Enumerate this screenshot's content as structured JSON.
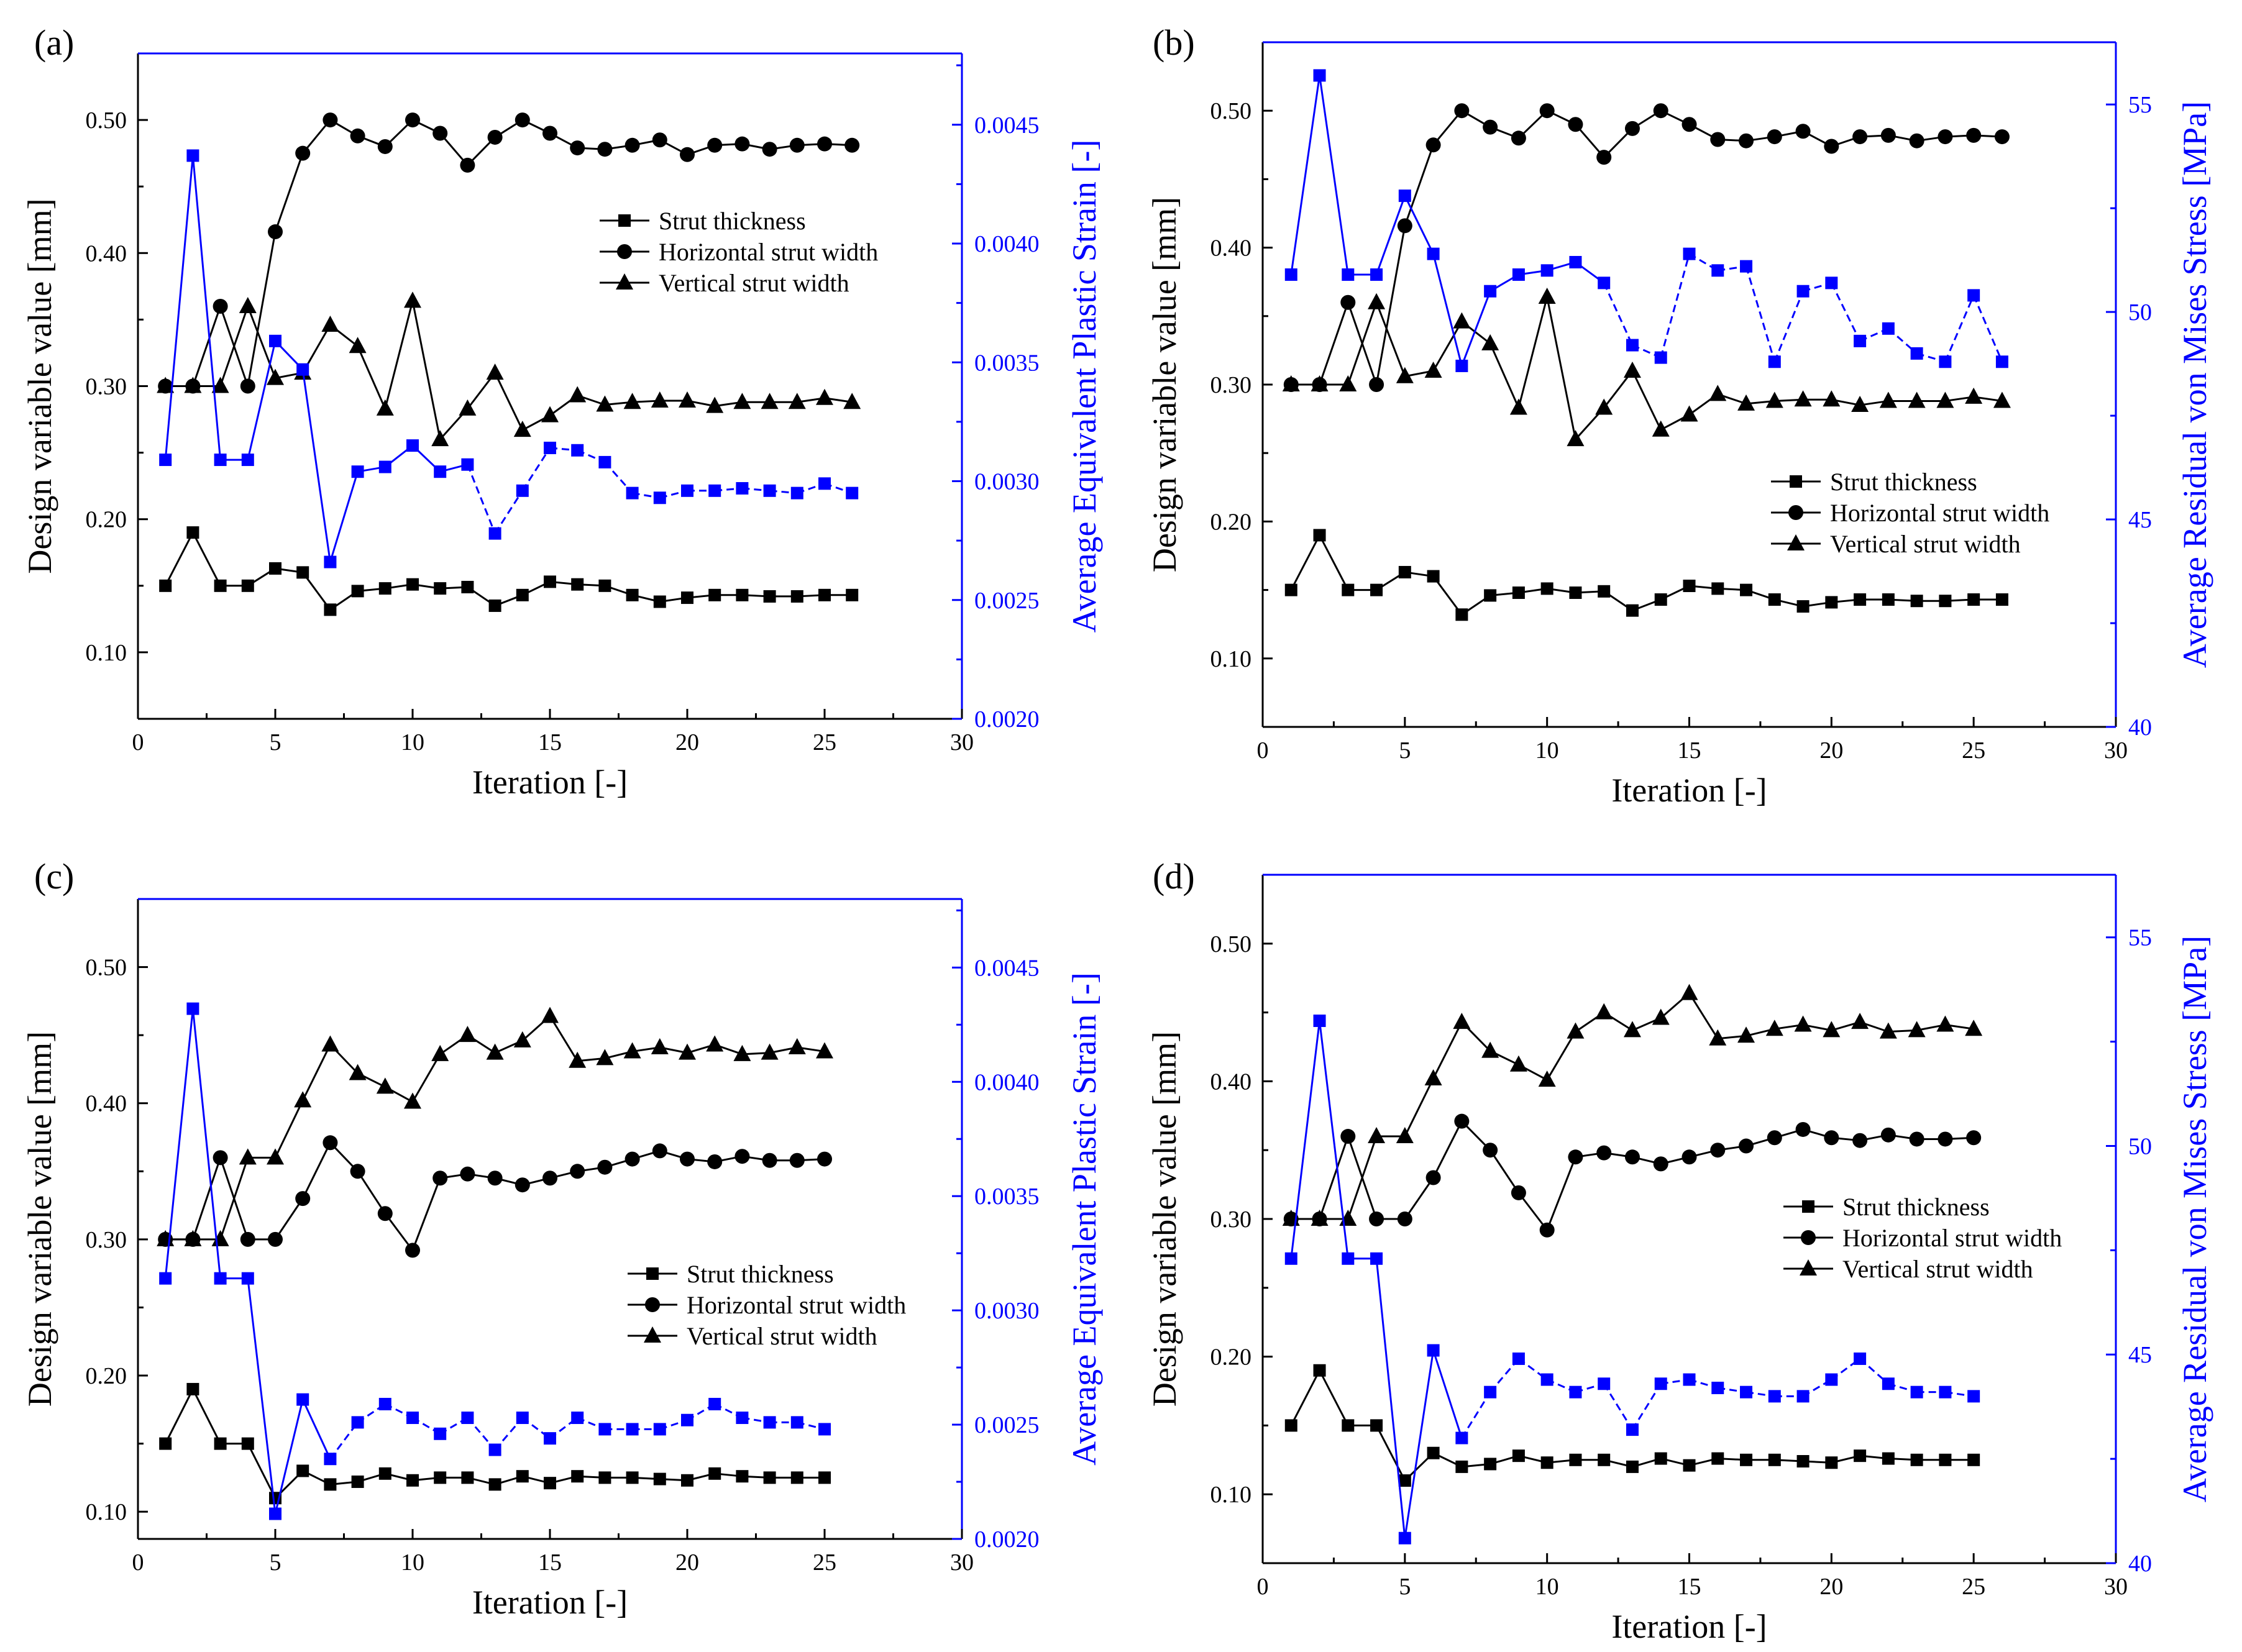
{
  "chart_data": [
    {
      "panel_label": "(a)",
      "type": "line",
      "xlabel": "Iteration [-]",
      "ylabel": "Design variable value [mm]",
      "y2label": "Average Equivalent Plastic Strain [-]",
      "xlim": [
        0,
        30
      ],
      "ylim": [
        0.05,
        0.55
      ],
      "y2lim": [
        0.002,
        0.0048
      ],
      "x_ticks": [
        "0",
        "5",
        "10",
        "15",
        "20",
        "25",
        "30"
      ],
      "y_ticks": [
        "0.10",
        "0.20",
        "0.30",
        "0.40",
        "0.50"
      ],
      "y2_ticks": [
        "0.0020",
        "0.0025",
        "0.0030",
        "0.0035",
        "0.0040",
        "0.0045"
      ],
      "legend_position": "upper-right",
      "x": [
        1,
        2,
        3,
        4,
        5,
        6,
        7,
        8,
        9,
        10,
        11,
        12,
        13,
        14,
        15,
        16,
        17,
        18,
        19,
        20,
        21,
        22,
        23,
        24,
        25,
        26
      ],
      "series": [
        {
          "name": "Strut thickness",
          "marker": "square",
          "axis": "left",
          "values": [
            0.15,
            0.19,
            0.15,
            0.15,
            0.163,
            0.16,
            0.132,
            0.146,
            0.148,
            0.151,
            0.148,
            0.149,
            0.135,
            0.143,
            0.153,
            0.151,
            0.15,
            0.143,
            0.138,
            0.141,
            0.143,
            0.143,
            0.142,
            0.142,
            0.143,
            0.143
          ]
        },
        {
          "name": "Horizontal strut width",
          "marker": "circle",
          "axis": "left",
          "values": [
            0.3,
            0.3,
            0.36,
            0.3,
            0.416,
            0.475,
            0.5,
            0.488,
            0.48,
            0.5,
            0.49,
            0.466,
            0.487,
            0.5,
            0.49,
            0.479,
            0.478,
            0.481,
            0.485,
            0.474,
            0.481,
            0.482,
            0.478,
            0.481,
            0.482,
            0.481
          ]
        },
        {
          "name": "Vertical strut width",
          "marker": "triangle",
          "axis": "left",
          "values": [
            0.3,
            0.3,
            0.3,
            0.36,
            0.306,
            0.31,
            0.346,
            0.33,
            0.283,
            0.364,
            0.26,
            0.283,
            0.31,
            0.267,
            0.278,
            0.293,
            0.286,
            0.288,
            0.289,
            0.289,
            0.285,
            0.288,
            0.288,
            0.288,
            0.291,
            0.288
          ]
        },
        {
          "name": "",
          "marker": "square",
          "axis": "right",
          "color": "#0000ff",
          "style": "dashed-after-12",
          "values": [
            0.00309,
            0.00437,
            0.00309,
            0.00309,
            0.00359,
            0.00347,
            0.00266,
            0.00304,
            0.00306,
            0.00315,
            0.00304,
            0.00307,
            0.00278,
            0.00296,
            0.00314,
            0.00313,
            0.00308,
            0.00295,
            0.00293,
            0.00296,
            0.00296,
            0.00297,
            0.00296,
            0.00295,
            0.00299,
            0.00295
          ]
        }
      ]
    },
    {
      "panel_label": "(b)",
      "type": "line",
      "xlabel": "Iteration [-]",
      "ylabel": "Design variable value [mm]",
      "y2label": "Average Residual von Mises Stress [MPa]",
      "xlim": [
        0,
        30
      ],
      "ylim": [
        0.05,
        0.55
      ],
      "y2lim": [
        40,
        56.5
      ],
      "x_ticks": [
        "0",
        "5",
        "10",
        "15",
        "20",
        "25",
        "30"
      ],
      "y_ticks": [
        "0.10",
        "0.20",
        "0.30",
        "0.40",
        "0.50"
      ],
      "y2_ticks": [
        "40",
        "45",
        "50",
        "55"
      ],
      "legend_position": "lower-right",
      "x": [
        1,
        2,
        3,
        4,
        5,
        6,
        7,
        8,
        9,
        10,
        11,
        12,
        13,
        14,
        15,
        16,
        17,
        18,
        19,
        20,
        21,
        22,
        23,
        24,
        25,
        26
      ],
      "series": [
        {
          "name": "Strut thickness",
          "marker": "square",
          "axis": "left",
          "values": [
            0.15,
            0.19,
            0.15,
            0.15,
            0.163,
            0.16,
            0.132,
            0.146,
            0.148,
            0.151,
            0.148,
            0.149,
            0.135,
            0.143,
            0.153,
            0.151,
            0.15,
            0.143,
            0.138,
            0.141,
            0.143,
            0.143,
            0.142,
            0.142,
            0.143,
            0.143
          ]
        },
        {
          "name": "Horizontal strut width",
          "marker": "circle",
          "axis": "left",
          "values": [
            0.3,
            0.3,
            0.36,
            0.3,
            0.416,
            0.475,
            0.5,
            0.488,
            0.48,
            0.5,
            0.49,
            0.466,
            0.487,
            0.5,
            0.49,
            0.479,
            0.478,
            0.481,
            0.485,
            0.474,
            0.481,
            0.482,
            0.478,
            0.481,
            0.482,
            0.481
          ]
        },
        {
          "name": "Vertical strut width",
          "marker": "triangle",
          "axis": "left",
          "values": [
            0.3,
            0.3,
            0.3,
            0.36,
            0.306,
            0.31,
            0.346,
            0.33,
            0.283,
            0.364,
            0.26,
            0.283,
            0.31,
            0.267,
            0.278,
            0.293,
            0.286,
            0.288,
            0.289,
            0.289,
            0.285,
            0.288,
            0.288,
            0.288,
            0.291,
            0.288
          ]
        },
        {
          "name": "",
          "marker": "square",
          "axis": "right",
          "color": "#0000ff",
          "style": "dashed-after-12",
          "values": [
            50.9,
            55.7,
            50.9,
            50.9,
            52.8,
            51.4,
            48.7,
            50.5,
            50.9,
            51.0,
            51.2,
            50.7,
            49.2,
            48.9,
            51.4,
            51.0,
            51.1,
            48.8,
            50.5,
            50.7,
            49.3,
            49.6,
            49.0,
            48.8,
            50.4,
            48.8
          ]
        }
      ]
    },
    {
      "panel_label": "(c)",
      "type": "line",
      "xlabel": "Iteration [-]",
      "ylabel": "Design variable value [mm]",
      "y2label": "Average Equivalent Plastic Strain [-]",
      "xlim": [
        0,
        30
      ],
      "ylim": [
        0.08,
        0.55
      ],
      "y2lim": [
        0.002,
        0.0048
      ],
      "x_ticks": [
        "0",
        "5",
        "10",
        "15",
        "20",
        "25",
        "30"
      ],
      "y_ticks": [
        "0.10",
        "0.20",
        "0.30",
        "0.40",
        "0.50"
      ],
      "y2_ticks": [
        "0.0020",
        "0.0025",
        "0.0030",
        "0.0035",
        "0.0040",
        "0.0045"
      ],
      "legend_position": "lower-right",
      "x": [
        1,
        2,
        3,
        4,
        5,
        6,
        7,
        8,
        9,
        10,
        11,
        12,
        13,
        14,
        15,
        16,
        17,
        18,
        19,
        20,
        21,
        22,
        23,
        24,
        25
      ],
      "series": [
        {
          "name": "Strut thickness",
          "marker": "square",
          "axis": "left",
          "values": [
            0.15,
            0.19,
            0.15,
            0.15,
            0.11,
            0.13,
            0.12,
            0.122,
            0.128,
            0.123,
            0.125,
            0.125,
            0.12,
            0.126,
            0.121,
            0.126,
            0.125,
            0.125,
            0.124,
            0.123,
            0.128,
            0.126,
            0.125,
            0.125,
            0.125
          ]
        },
        {
          "name": "Horizontal strut width",
          "marker": "circle",
          "axis": "left",
          "values": [
            0.3,
            0.3,
            0.36,
            0.3,
            0.3,
            0.33,
            0.371,
            0.35,
            0.319,
            0.292,
            0.345,
            0.348,
            0.345,
            0.34,
            0.345,
            0.35,
            0.353,
            0.359,
            0.365,
            0.359,
            0.357,
            0.361,
            0.358,
            0.358,
            0.359
          ]
        },
        {
          "name": "Vertical strut width",
          "marker": "triangle",
          "axis": "left",
          "values": [
            0.3,
            0.3,
            0.3,
            0.36,
            0.36,
            0.402,
            0.443,
            0.422,
            0.412,
            0.401,
            0.436,
            0.45,
            0.437,
            0.446,
            0.464,
            0.431,
            0.433,
            0.438,
            0.441,
            0.437,
            0.443,
            0.436,
            0.437,
            0.441,
            0.438
          ]
        },
        {
          "name": "",
          "marker": "square",
          "axis": "right",
          "color": "#0000ff",
          "style": "dashed-after-7",
          "values": [
            0.00314,
            0.00432,
            0.00314,
            0.00314,
            0.00211,
            0.00261,
            0.00235,
            0.00251,
            0.00259,
            0.00253,
            0.00246,
            0.00253,
            0.00239,
            0.00253,
            0.00244,
            0.00253,
            0.00248,
            0.00248,
            0.00248,
            0.00252,
            0.00259,
            0.00253,
            0.00251,
            0.00251,
            0.00248
          ]
        }
      ]
    },
    {
      "panel_label": "(d)",
      "type": "line",
      "xlabel": "Iteration [-]",
      "ylabel": "Design variable value [mm]",
      "y2label": "Average Residual von Mises Stress [MPa]",
      "xlim": [
        0,
        30
      ],
      "ylim": [
        0.05,
        0.55
      ],
      "y2lim": [
        40,
        56.5
      ],
      "x_ticks": [
        "0",
        "5",
        "10",
        "15",
        "20",
        "25",
        "30"
      ],
      "y_ticks": [
        "0.10",
        "0.20",
        "0.30",
        "0.40",
        "0.50"
      ],
      "y2_ticks": [
        "40",
        "45",
        "50",
        "55"
      ],
      "legend_position": "lower-right",
      "x": [
        1,
        2,
        3,
        4,
        5,
        6,
        7,
        8,
        9,
        10,
        11,
        12,
        13,
        14,
        15,
        16,
        17,
        18,
        19,
        20,
        21,
        22,
        23,
        24,
        25
      ],
      "series": [
        {
          "name": "Strut thickness",
          "marker": "square",
          "axis": "left",
          "values": [
            0.15,
            0.19,
            0.15,
            0.15,
            0.11,
            0.13,
            0.12,
            0.122,
            0.128,
            0.123,
            0.125,
            0.125,
            0.12,
            0.126,
            0.121,
            0.126,
            0.125,
            0.125,
            0.124,
            0.123,
            0.128,
            0.126,
            0.125,
            0.125,
            0.125
          ]
        },
        {
          "name": "Horizontal strut width",
          "marker": "circle",
          "axis": "left",
          "values": [
            0.3,
            0.3,
            0.36,
            0.3,
            0.3,
            0.33,
            0.371,
            0.35,
            0.319,
            0.292,
            0.345,
            0.348,
            0.345,
            0.34,
            0.345,
            0.35,
            0.353,
            0.359,
            0.365,
            0.359,
            0.357,
            0.361,
            0.358,
            0.358,
            0.359
          ]
        },
        {
          "name": "Vertical strut width",
          "marker": "triangle",
          "axis": "left",
          "values": [
            0.3,
            0.3,
            0.3,
            0.36,
            0.36,
            0.402,
            0.443,
            0.422,
            0.412,
            0.401,
            0.436,
            0.45,
            0.437,
            0.446,
            0.464,
            0.431,
            0.433,
            0.438,
            0.441,
            0.437,
            0.443,
            0.436,
            0.437,
            0.441,
            0.438
          ]
        },
        {
          "name": "",
          "marker": "square",
          "axis": "right",
          "color": "#0000ff",
          "style": "dashed-after-7",
          "values": [
            47.3,
            53.0,
            47.3,
            47.3,
            40.6,
            45.1,
            43.0,
            44.1,
            44.9,
            44.4,
            44.1,
            44.3,
            43.2,
            44.3,
            44.4,
            44.2,
            44.1,
            44.0,
            44.0,
            44.4,
            44.9,
            44.3,
            44.1,
            44.1,
            44.0
          ]
        }
      ]
    }
  ]
}
